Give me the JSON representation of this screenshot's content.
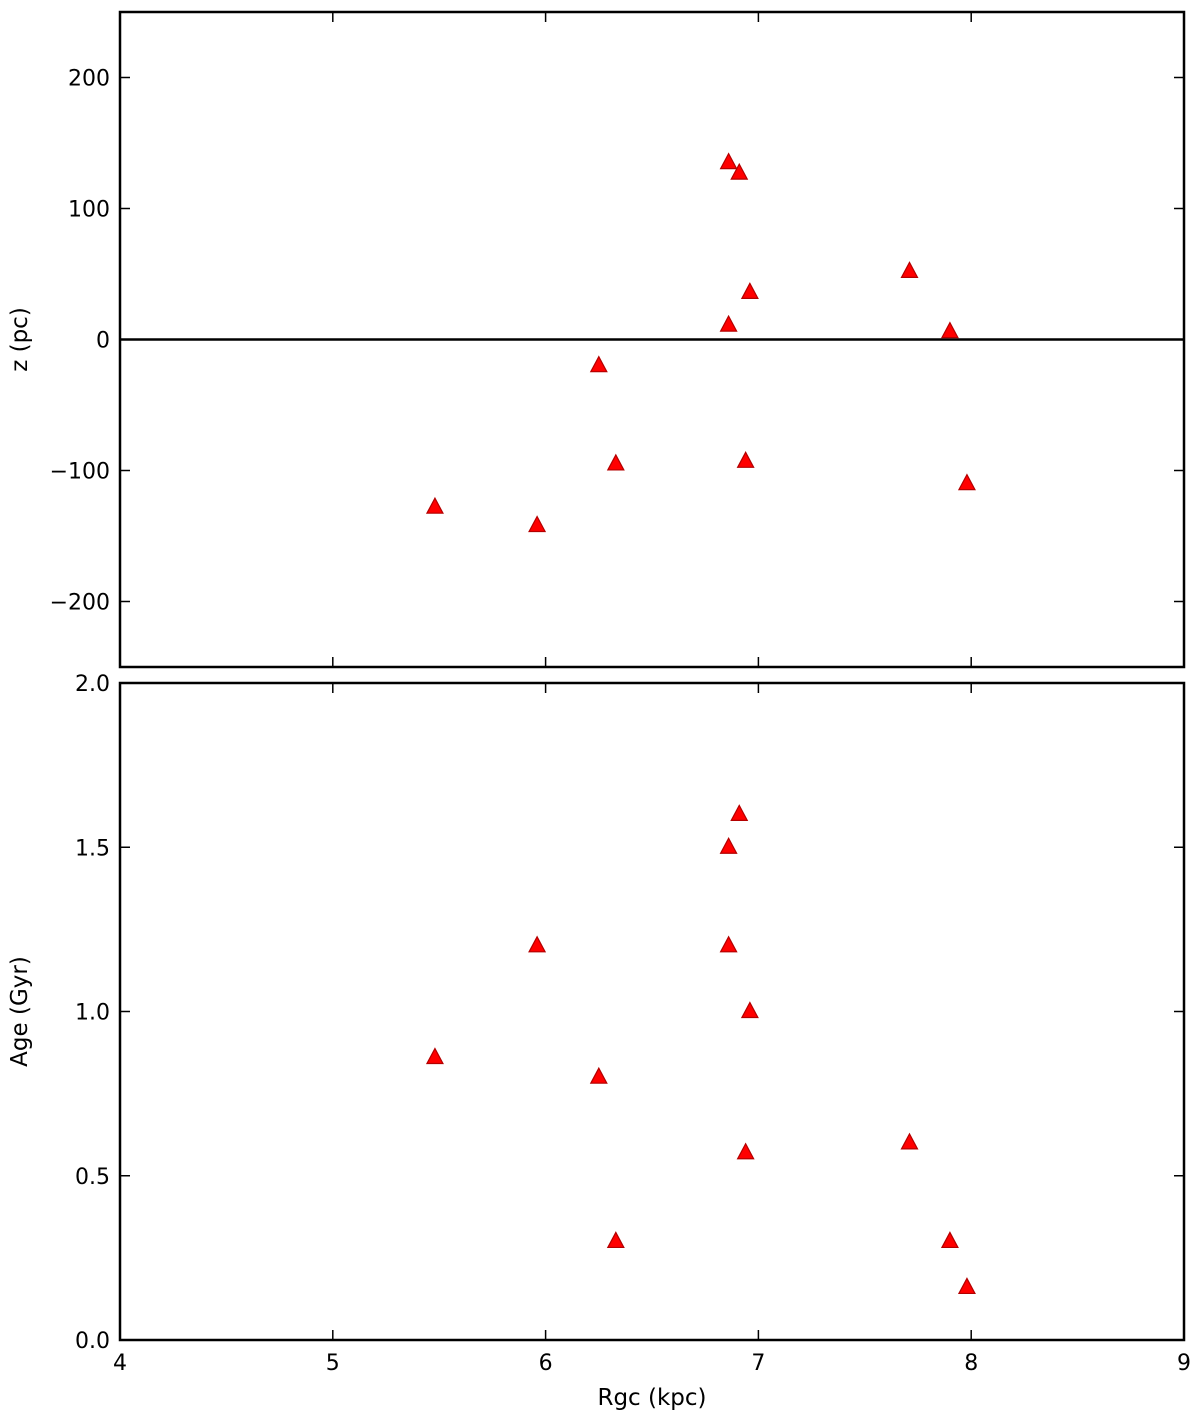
{
  "colors": {
    "marker": "#ff0000",
    "axes": "#000000",
    "background": "#ffffff"
  },
  "chart_data": [
    {
      "type": "scatter",
      "panel": "top",
      "marker": "triangle-up",
      "xlabel": "",
      "ylabel": "z (pc)",
      "xlim": [
        4,
        9
      ],
      "ylim": [
        -250,
        250
      ],
      "xticks": [
        4,
        5,
        6,
        7,
        8,
        9
      ],
      "yticks": [
        -200,
        -100,
        0,
        100,
        200
      ],
      "ytick_labels": [
        "−200",
        "−100",
        "0",
        "100",
        "200"
      ],
      "show_xtick_labels": false,
      "horizontal_line_y": 0,
      "grid": false,
      "x": [
        5.48,
        5.96,
        6.25,
        6.33,
        6.86,
        6.86,
        6.91,
        6.94,
        6.96,
        7.71,
        7.9,
        7.98
      ],
      "y": [
        -128,
        -142,
        -20,
        -95,
        135,
        11,
        127,
        -93,
        36,
        52,
        6,
        -110
      ]
    },
    {
      "type": "scatter",
      "panel": "bottom",
      "marker": "triangle-up",
      "xlabel": "Rgc (kpc)",
      "ylabel": "Age (Gyr)",
      "xlim": [
        4,
        9
      ],
      "ylim": [
        0,
        2
      ],
      "xticks": [
        4,
        5,
        6,
        7,
        8,
        9
      ],
      "xtick_labels": [
        "4",
        "5",
        "6",
        "7",
        "8",
        "9"
      ],
      "yticks": [
        0,
        0.5,
        1,
        1.5,
        2
      ],
      "ytick_labels": [
        "0.0",
        "0.5",
        "1.0",
        "1.5",
        "2.0"
      ],
      "show_xtick_labels": true,
      "grid": false,
      "x": [
        5.48,
        5.96,
        6.25,
        6.33,
        6.86,
        6.86,
        6.91,
        6.94,
        6.96,
        7.71,
        7.9,
        7.98
      ],
      "y": [
        0.86,
        1.2,
        0.8,
        0.3,
        1.5,
        1.2,
        1.6,
        0.57,
        1.0,
        0.6,
        0.3,
        0.16
      ]
    }
  ]
}
